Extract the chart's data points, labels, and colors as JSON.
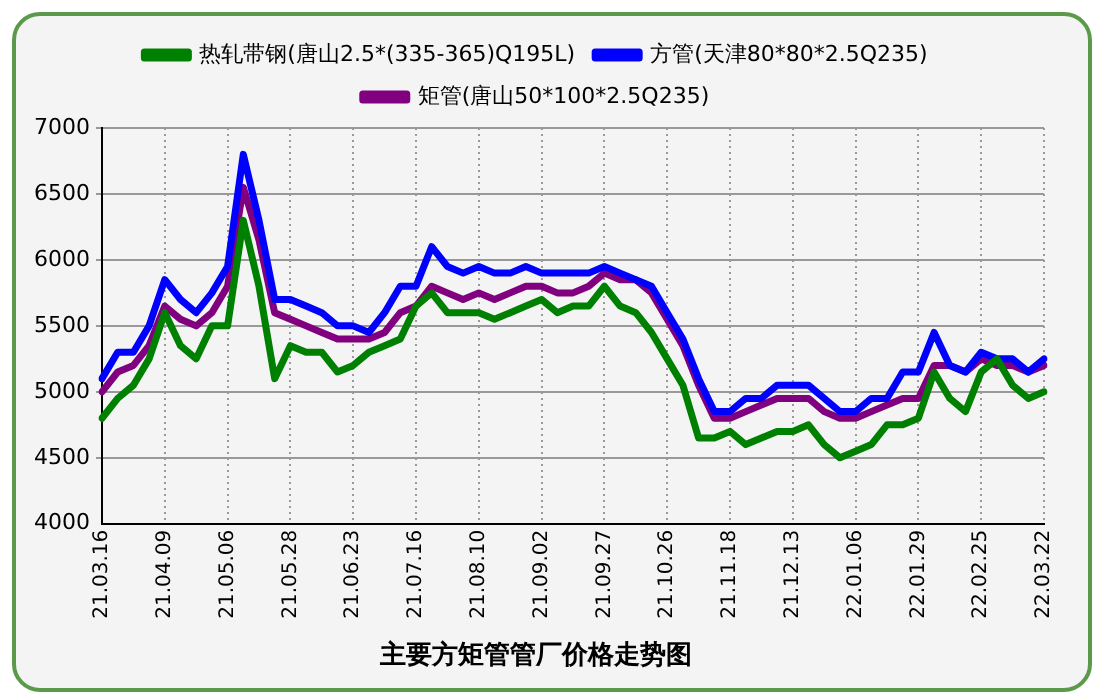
{
  "chart_data": {
    "type": "line",
    "title": "主要方矩管管厂价格走势图",
    "categories": [
      "21.03.16",
      null,
      null,
      null,
      "21.04.09",
      null,
      null,
      null,
      "21.05.06",
      null,
      null,
      null,
      "21.05.28",
      null,
      null,
      null,
      "21.06.23",
      null,
      null,
      null,
      "21.07.16",
      null,
      null,
      null,
      "21.08.10",
      null,
      null,
      null,
      "21.09.02",
      null,
      null,
      null,
      "21.09.27",
      null,
      null,
      null,
      "21.10.26",
      null,
      null,
      null,
      "21.11.18",
      null,
      null,
      null,
      "21.12.13",
      null,
      null,
      null,
      "22.01.06",
      null,
      null,
      null,
      "22.01.29",
      null,
      null,
      null,
      "22.02.25",
      null,
      null,
      null,
      "22.03.22"
    ],
    "series": [
      {
        "name": "热轧带钢(唐山2.5*(335-365)Q195L)",
        "color": "#008000",
        "values": [
          4800,
          4950,
          5050,
          5250,
          5600,
          5350,
          5250,
          5500,
          5500,
          6300,
          5800,
          5100,
          5350,
          5300,
          5300,
          5150,
          5200,
          5300,
          5350,
          5400,
          5650,
          5750,
          5600,
          5600,
          5600,
          5550,
          5600,
          5650,
          5700,
          5600,
          5650,
          5650,
          5800,
          5650,
          5600,
          5450,
          5250,
          5050,
          4650,
          4650,
          4700,
          4600,
          4650,
          4700,
          4700,
          4750,
          4600,
          4500,
          4550,
          4600,
          4750,
          4750,
          4800,
          5150,
          4950,
          4850,
          5150,
          5250,
          5050,
          4950,
          5000
        ]
      },
      {
        "name": "方管(天津80*80*2.5Q235)",
        "color": "#0000ff",
        "values": [
          5100,
          5300,
          5300,
          5500,
          5850,
          5700,
          5600,
          5750,
          5950,
          6800,
          6300,
          5700,
          5700,
          5650,
          5600,
          5500,
          5500,
          5450,
          5600,
          5800,
          5800,
          6100,
          5950,
          5900,
          5950,
          5900,
          5900,
          5950,
          5900,
          5900,
          5900,
          5900,
          5950,
          5900,
          5850,
          5800,
          5600,
          5400,
          5100,
          4850,
          4850,
          4950,
          4950,
          5050,
          5050,
          5050,
          4950,
          4850,
          4850,
          4950,
          4950,
          5150,
          5150,
          5450,
          5200,
          5150,
          5300,
          5250,
          5250,
          5150,
          5250
        ]
      },
      {
        "name": "矩管(唐山50*100*2.5Q235)",
        "color": "#800080",
        "values": [
          5000,
          5150,
          5200,
          5350,
          5650,
          5550,
          5500,
          5600,
          5800,
          6550,
          6150,
          5600,
          5550,
          5500,
          5450,
          5400,
          5400,
          5400,
          5450,
          5600,
          5650,
          5800,
          5750,
          5700,
          5750,
          5700,
          5750,
          5800,
          5800,
          5750,
          5750,
          5800,
          5900,
          5850,
          5850,
          5750,
          5550,
          5350,
          5050,
          4800,
          4800,
          4850,
          4900,
          4950,
          4950,
          4950,
          4850,
          4800,
          4800,
          4850,
          4900,
          4950,
          4950,
          5200,
          5200,
          5150,
          5250,
          5200,
          5200,
          5150,
          5200
        ]
      }
    ],
    "ylim": [
      4000,
      7000
    ],
    "yticks": [
      4000,
      4500,
      5000,
      5500,
      6000,
      6500,
      7000
    ],
    "grid": true,
    "legend": "top",
    "marker": "none",
    "line_style": "solid"
  }
}
